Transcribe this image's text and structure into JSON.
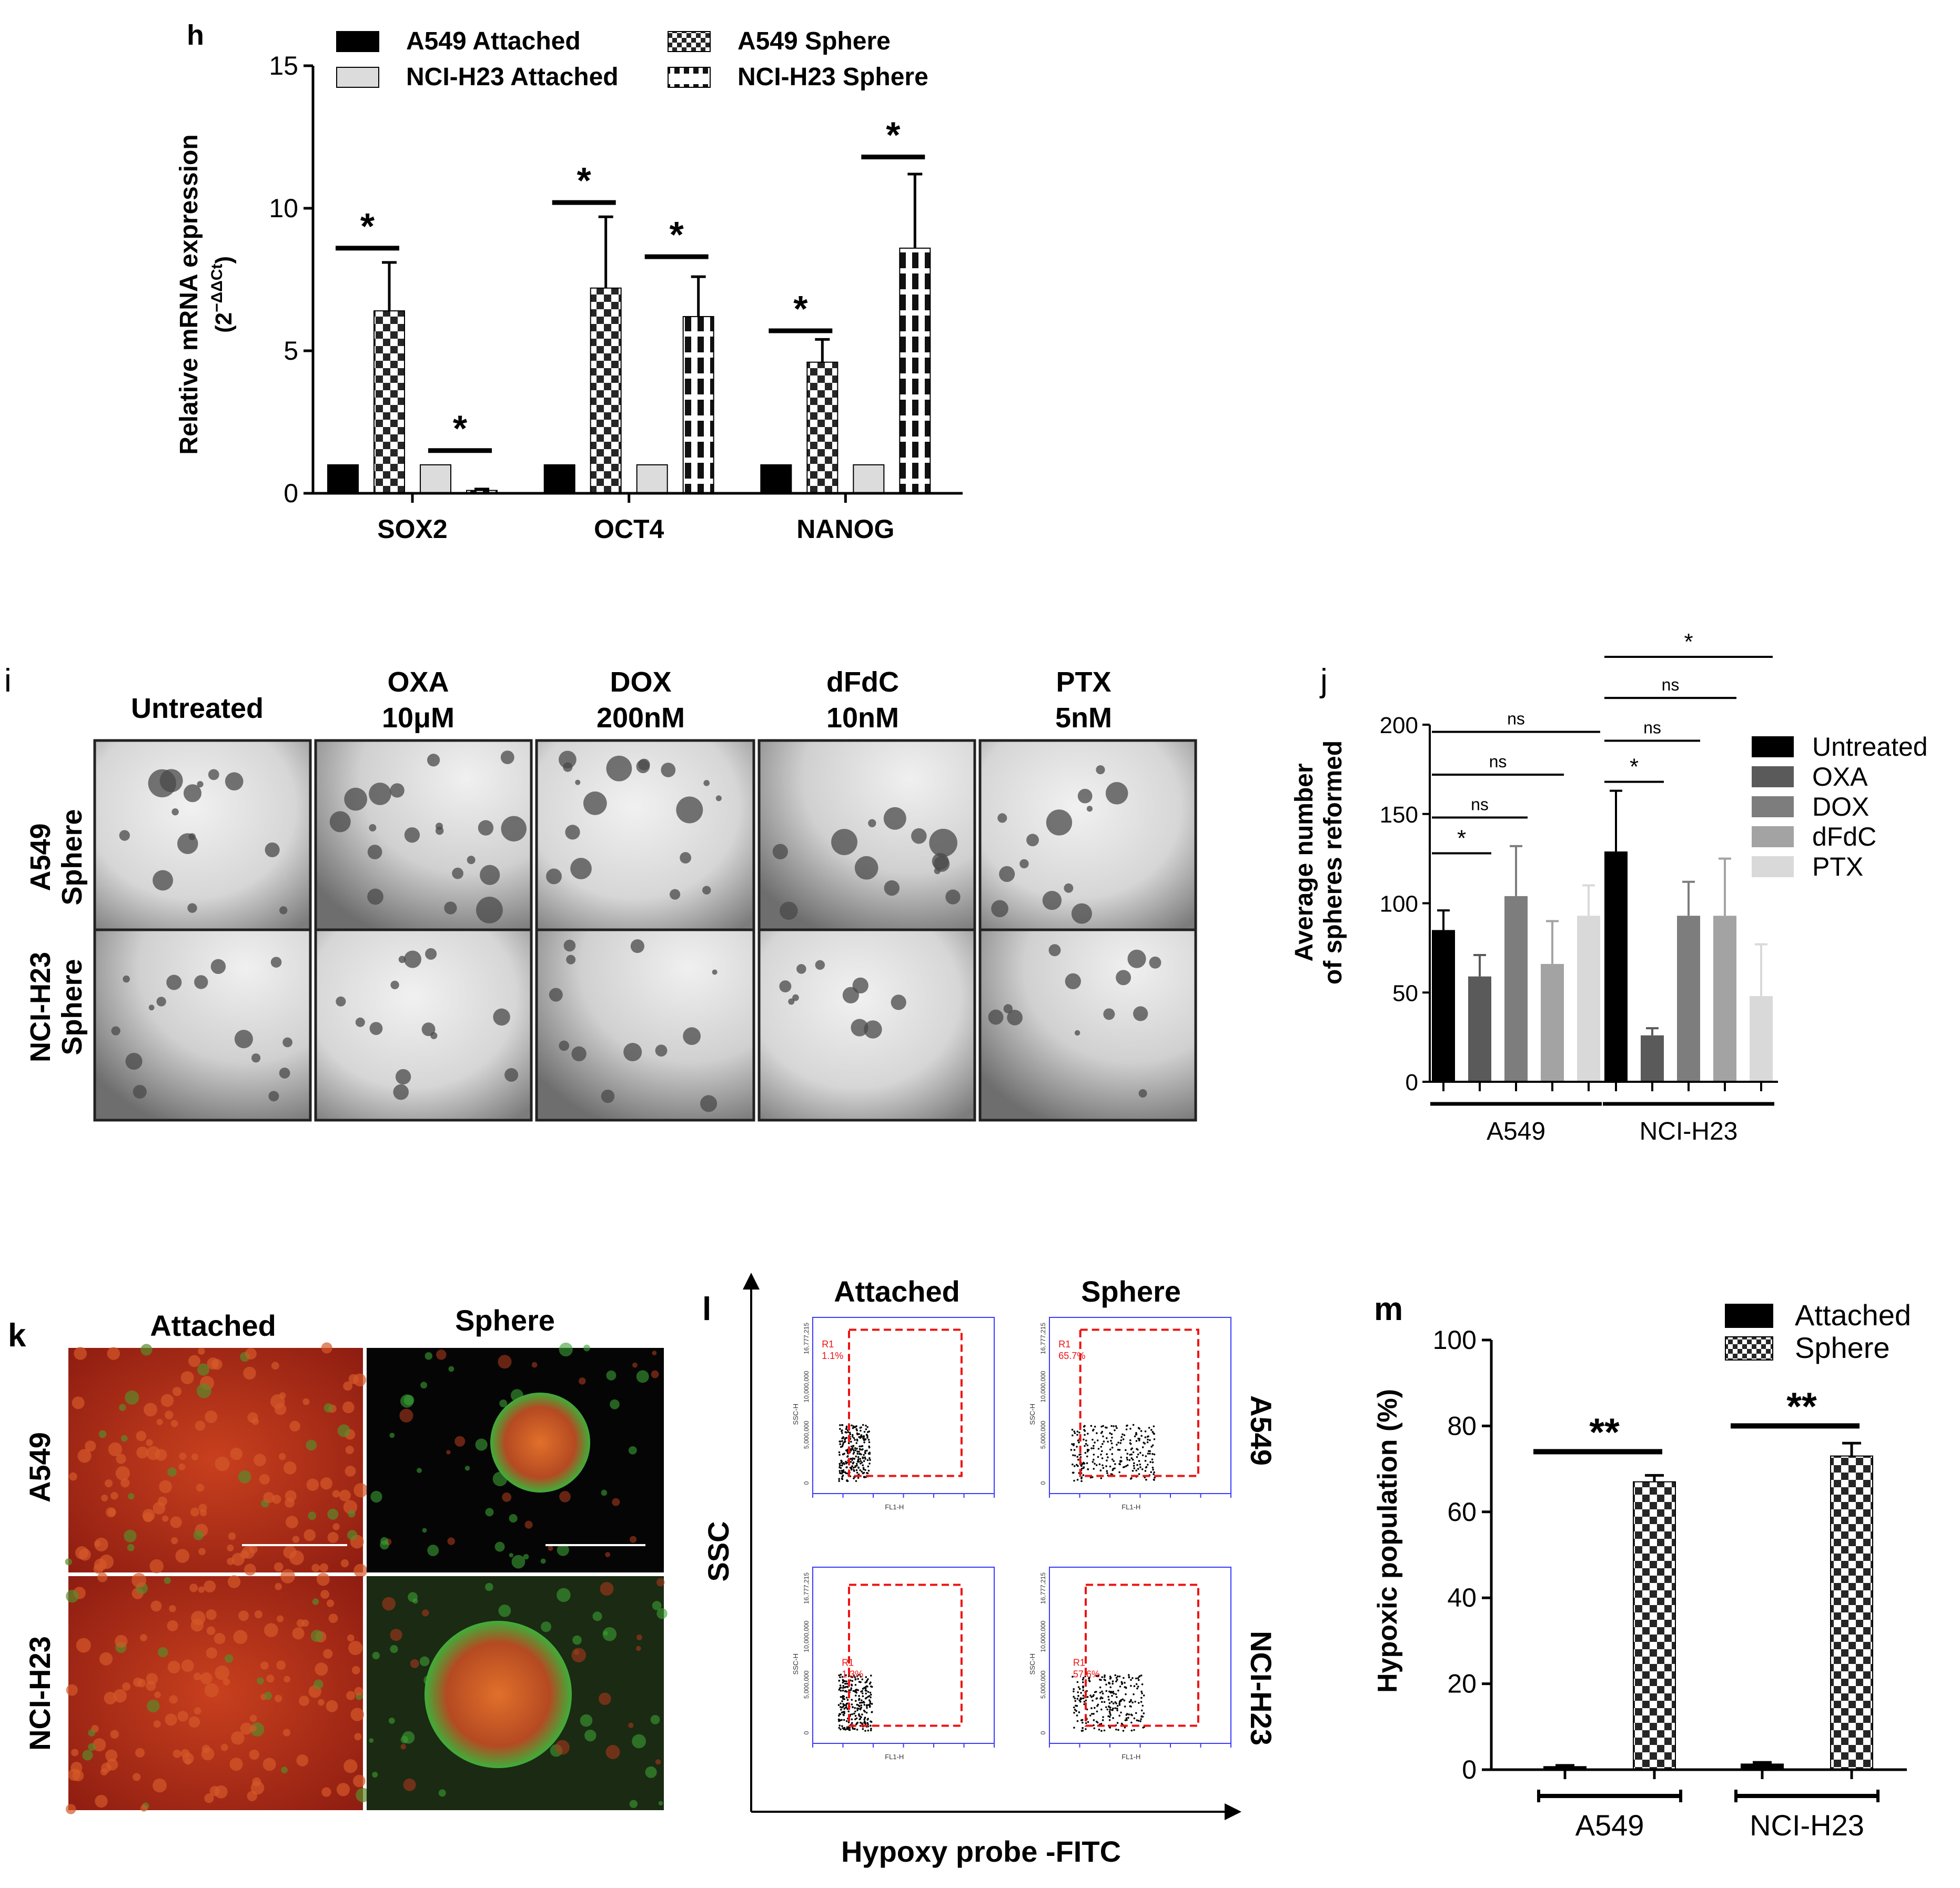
{
  "panels": {
    "h": {
      "letter": "h"
    },
    "i": {
      "letter": "i",
      "column_headers": [
        [
          "Untreated"
        ],
        [
          "OXA",
          "10μM"
        ],
        [
          "DOX",
          "200nM"
        ],
        [
          "dFdC",
          "10nM"
        ],
        [
          "PTX",
          "5nM"
        ]
      ],
      "row_labels": [
        [
          "A549",
          "Sphere"
        ],
        [
          "NCI-H23",
          "Sphere"
        ]
      ]
    },
    "j": {
      "letter": "j"
    },
    "k": {
      "letter": "k",
      "column_headers": [
        "Attached",
        "Sphere"
      ],
      "row_labels": [
        "A549",
        "NCI-H23"
      ]
    },
    "l": {
      "letter": "l",
      "column_headers": [
        "Attached",
        "Sphere"
      ],
      "row_labels": [
        "A549",
        "NCI-H23"
      ],
      "ylabel": "SSC",
      "xlabel": "Hypoxy probe -FITC",
      "plots": [
        {
          "row": "A549",
          "col": "Attached",
          "gate_label": "R1",
          "gate_value": "1.1%"
        },
        {
          "row": "A549",
          "col": "Sphere",
          "gate_label": "R1",
          "gate_value": "65.7%"
        },
        {
          "row": "NCI-H23",
          "col": "Attached",
          "gate_label": "R1",
          "gate_value": "1.3%"
        },
        {
          "row": "NCI-H23",
          "col": "Sphere",
          "gate_label": "R1",
          "gate_value": "57.6%"
        }
      ],
      "plot_axis_labels": {
        "x": "FL1-H",
        "y": "SSC-H"
      },
      "plot_y_ticks": [
        "16,777,215",
        "10,000,000",
        "5,000,000",
        "0"
      ]
    },
    "m": {
      "letter": "m"
    }
  },
  "chart_data": [
    {
      "id": "h",
      "type": "bar",
      "categories": [
        "SOX2",
        "OCT4",
        "NANOG"
      ],
      "ylabel": "Relative mRNA expression (2^−ΔΔCt)",
      "ylabel_line1": "Relative mRNA expression",
      "ylabel_line2_base": "(2",
      "ylabel_line2_sup": "−ΔΔCt",
      "ylabel_line2_end": ")",
      "ylim": [
        0,
        15
      ],
      "yticks": [
        0,
        5,
        10,
        15
      ],
      "series": [
        {
          "name": "A549 Attached",
          "pattern": "solid-black",
          "values": [
            1,
            1,
            1
          ],
          "errors": [
            0,
            0,
            0
          ]
        },
        {
          "name": "A549 Sphere",
          "pattern": "checker",
          "values": [
            6.4,
            7.2,
            4.6
          ],
          "errors": [
            1.7,
            2.5,
            0.8
          ]
        },
        {
          "name": "NCI-H23 Attached",
          "pattern": "light-gray",
          "values": [
            1,
            1,
            1
          ],
          "errors": [
            0,
            0,
            0
          ]
        },
        {
          "name": "NCI-H23 Sphere",
          "pattern": "vstripe",
          "values": [
            0.1,
            6.2,
            8.6
          ],
          "errors": [
            0.05,
            1.4,
            2.6
          ]
        }
      ],
      "legend_order": [
        "A549 Attached",
        "A549 Sphere",
        "NCI-H23 Attached",
        "NCI-H23 Sphere"
      ],
      "significance": [
        {
          "category": "SOX2",
          "pair": "A549",
          "label": "*",
          "y": 8.6
        },
        {
          "category": "SOX2",
          "pair": "NCI-H23",
          "label": "*",
          "y": 1.5
        },
        {
          "category": "OCT4",
          "pair": "A549",
          "label": "*",
          "y": 10.2
        },
        {
          "category": "OCT4",
          "pair": "NCI-H23",
          "label": "*",
          "y": 8.3
        },
        {
          "category": "NANOG",
          "pair": "A549",
          "label": "*",
          "y": 5.7
        },
        {
          "category": "NANOG",
          "pair": "NCI-H23",
          "label": "*",
          "y": 11.8
        }
      ],
      "grid": false,
      "legend_placement": "top"
    },
    {
      "id": "j",
      "type": "bar",
      "categories": [
        "A549",
        "NCI-H23"
      ],
      "ylabel_line1": "Average number",
      "ylabel_line2": "of spheres reformed",
      "ylim": [
        0,
        200
      ],
      "yticks": [
        0,
        50,
        100,
        150,
        200
      ],
      "series": [
        {
          "name": "Untreated",
          "color": "#000000",
          "values": [
            85,
            129
          ],
          "errors": [
            11,
            34
          ]
        },
        {
          "name": "OXA",
          "color": "#5a5a5a",
          "values": [
            59,
            26
          ],
          "errors": [
            12,
            4
          ]
        },
        {
          "name": "DOX",
          "color": "#7d7d7d",
          "values": [
            104,
            93
          ],
          "errors": [
            28,
            19
          ]
        },
        {
          "name": "dFdC",
          "color": "#a3a3a3",
          "values": [
            66,
            93
          ],
          "errors": [
            24,
            32
          ]
        },
        {
          "name": "PTX",
          "color": "#d9d9d9",
          "values": [
            93,
            48
          ],
          "errors": [
            17,
            29
          ]
        }
      ],
      "comparisons": [
        {
          "group": "A549",
          "to": "OXA",
          "label": "*",
          "y": 128
        },
        {
          "group": "A549",
          "to": "DOX",
          "label": "ns",
          "y": 148
        },
        {
          "group": "A549",
          "to": "dFdC",
          "label": "ns",
          "y": 172
        },
        {
          "group": "A549",
          "to": "PTX",
          "label": "ns",
          "y": 196
        },
        {
          "group": "NCI-H23",
          "to": "OXA",
          "label": "*",
          "y": 168
        },
        {
          "group": "NCI-H23",
          "to": "DOX",
          "label": "ns",
          "y": 191
        },
        {
          "group": "NCI-H23",
          "to": "dFdC",
          "label": "ns",
          "y": 215
        },
        {
          "group": "NCI-H23",
          "to": "PTX",
          "label": "*",
          "y": 238
        }
      ],
      "grid": false,
      "legend_placement": "right"
    },
    {
      "id": "m",
      "type": "bar",
      "categories": [
        "A549",
        "NCI-H23"
      ],
      "ylabel": "Hypoxic population (%)",
      "ylim": [
        0,
        100
      ],
      "yticks": [
        0,
        20,
        40,
        60,
        80,
        100
      ],
      "series": [
        {
          "name": "Attached",
          "pattern": "solid-black",
          "values": [
            0.7,
            1.3
          ],
          "errors": [
            0.3,
            0.4
          ]
        },
        {
          "name": "Sphere",
          "pattern": "checker",
          "values": [
            67,
            73
          ],
          "errors": [
            1.5,
            3
          ]
        }
      ],
      "significance": [
        {
          "category": "A549",
          "label": "**",
          "y": 74
        },
        {
          "category": "NCI-H23",
          "label": "**",
          "y": 80
        }
      ],
      "grid": false,
      "legend_placement": "top-right"
    }
  ]
}
